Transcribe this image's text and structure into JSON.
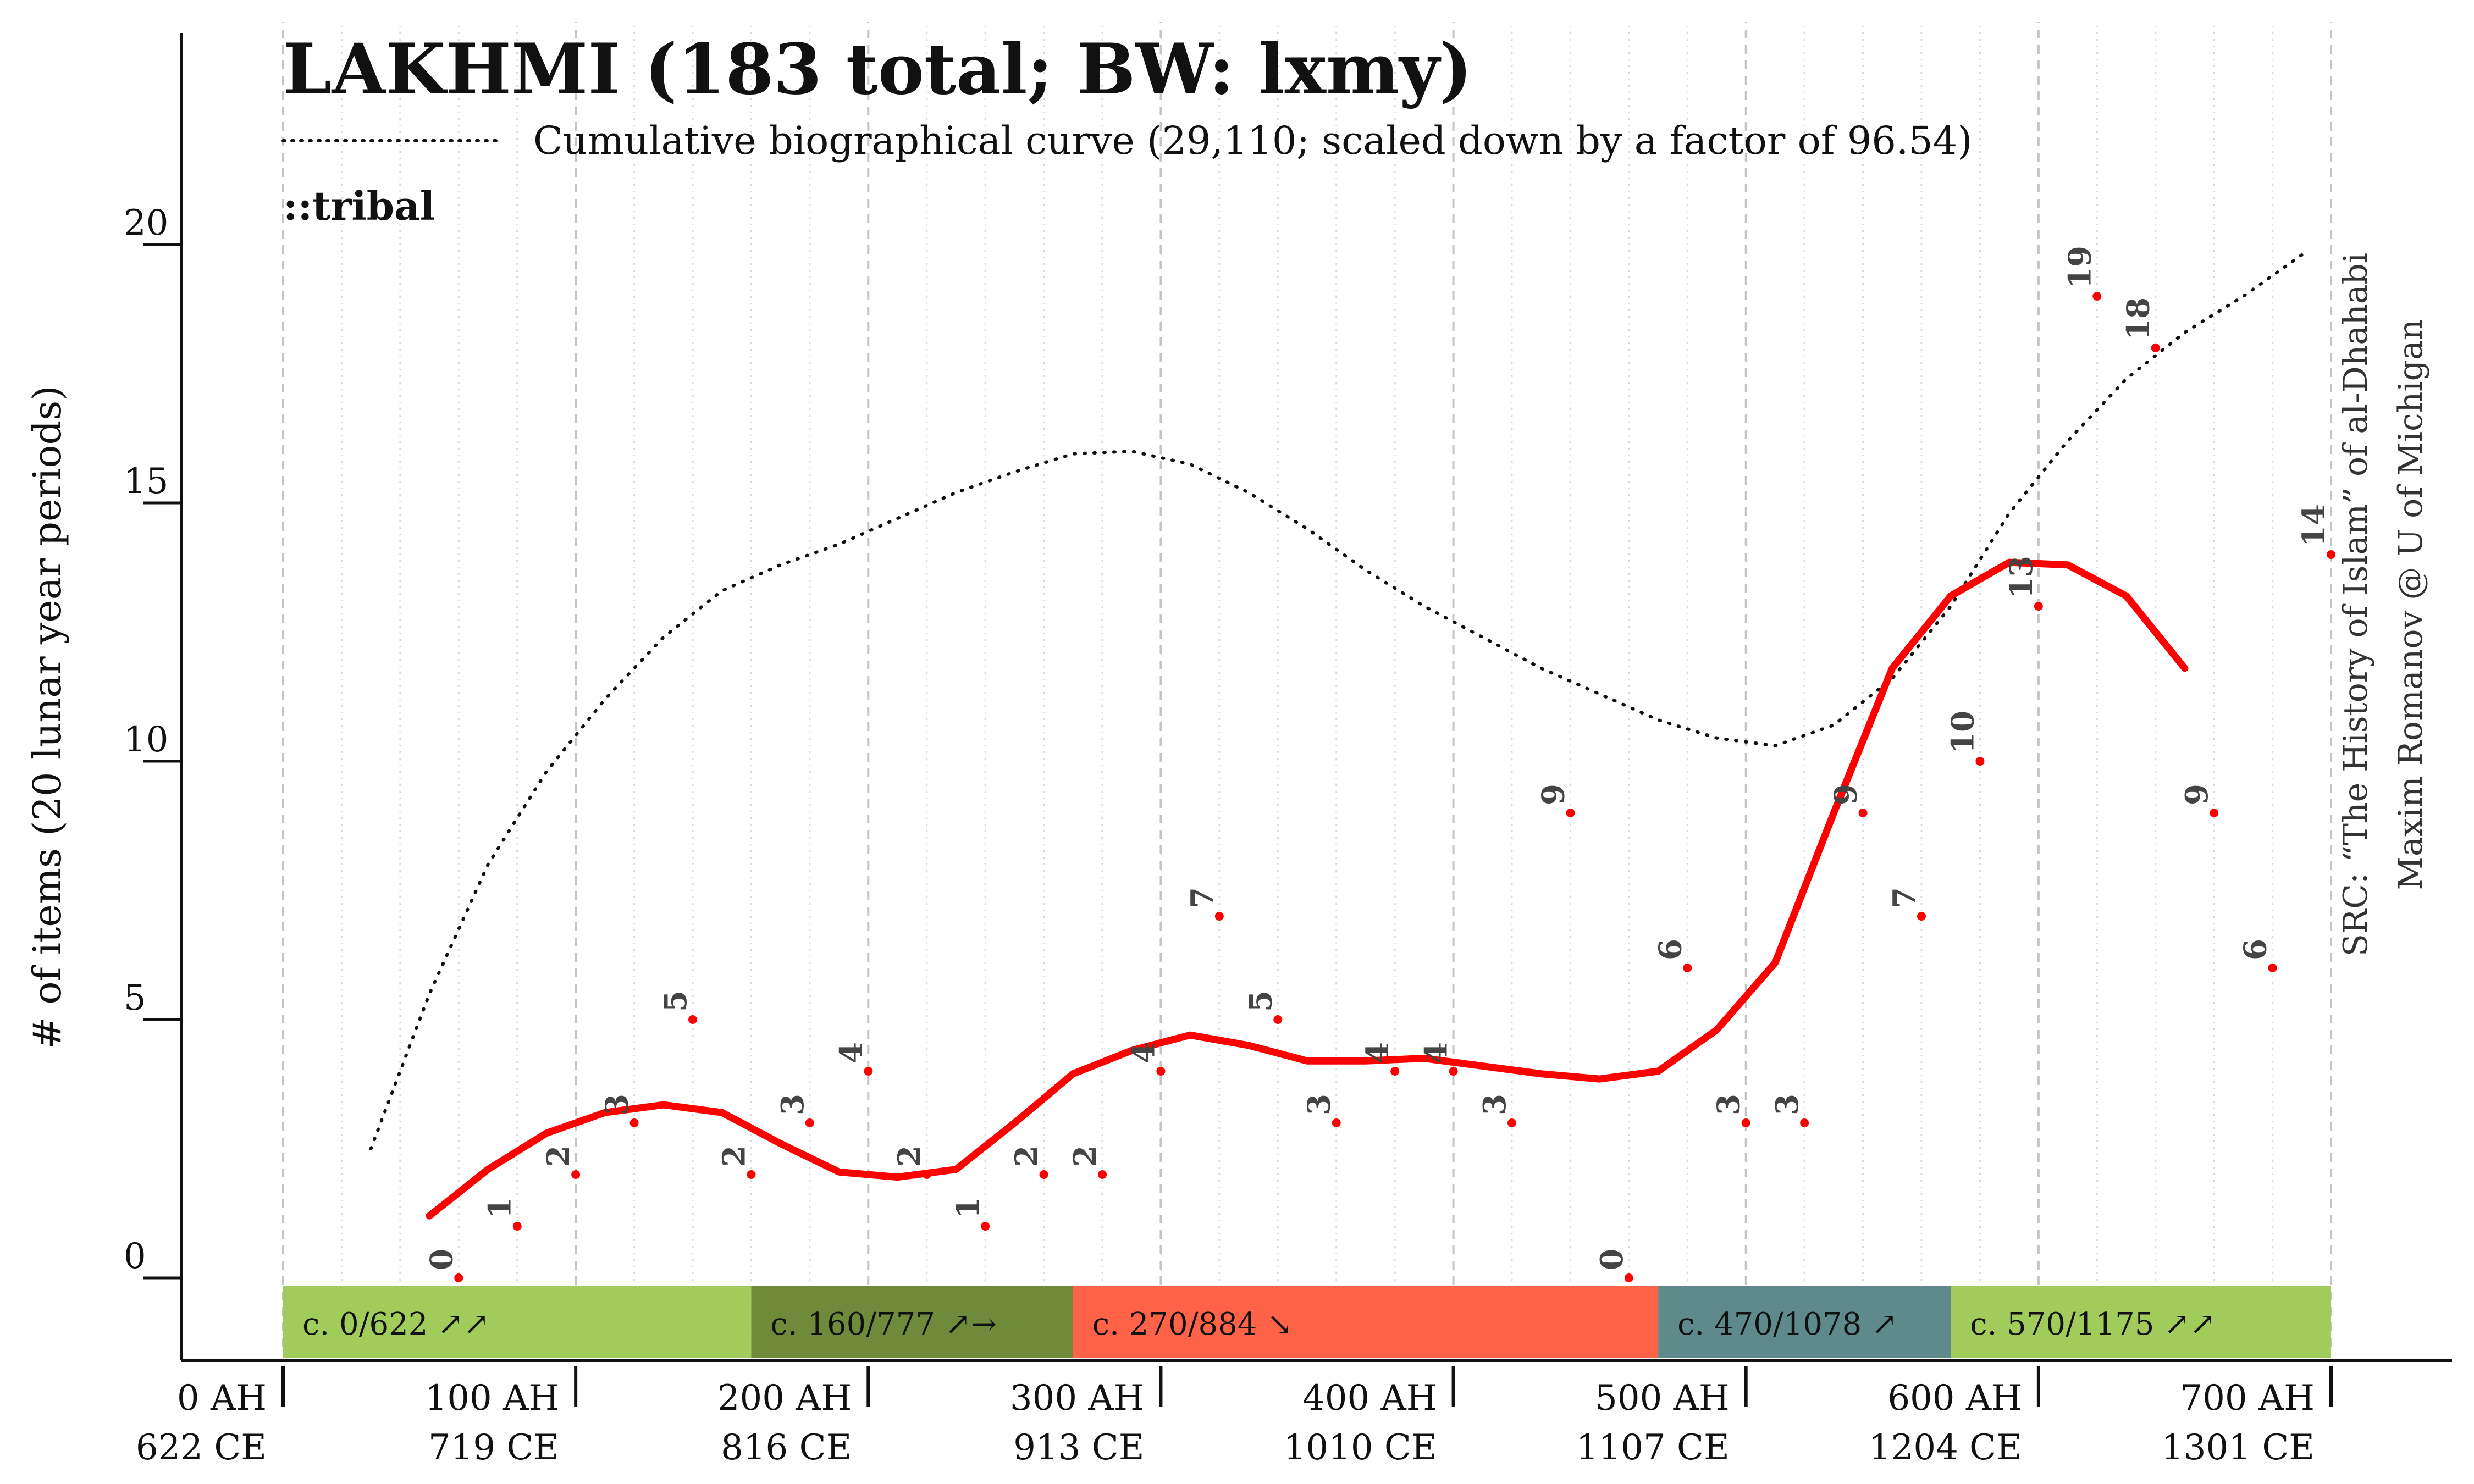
{
  "chart_data": {
    "type": "line",
    "title": "LAKHMI (183 total; BW: lxmy)",
    "topic_label": "::tribal",
    "ylabel": "# of items (20 lunar year periods)",
    "source_lines": [
      "SRC: “The History of Islam” of al-Dhahabi",
      "Maxim Romanov @ U of Michigan"
    ],
    "legend": "Cumulative biographical curve (29,110; scaled down by a factor of 96.54)",
    "xlim": [
      0,
      740
    ],
    "ylim": [
      -1.6,
      24
    ],
    "x_ticks": [
      {
        "x": 0,
        "ah": "0 AH",
        "ce": "622 CE"
      },
      {
        "x": 100,
        "ah": "100 AH",
        "ce": "719 CE"
      },
      {
        "x": 200,
        "ah": "200 AH",
        "ce": "816 CE"
      },
      {
        "x": 300,
        "ah": "300 AH",
        "ce": "913 CE"
      },
      {
        "x": 400,
        "ah": "400 AH",
        "ce": "1010 CE"
      },
      {
        "x": 500,
        "ah": "500 AH",
        "ce": "1107 CE"
      },
      {
        "x": 600,
        "ah": "600 AH",
        "ce": "1204 CE"
      },
      {
        "x": 700,
        "ah": "700 AH",
        "ce": "1301 CE"
      }
    ],
    "y_ticks": [
      0,
      5,
      10,
      15,
      20
    ],
    "points": [
      {
        "x": 60,
        "y": 0,
        "label": "0"
      },
      {
        "x": 80,
        "y": 1,
        "label": "1"
      },
      {
        "x": 100,
        "y": 2,
        "label": "2"
      },
      {
        "x": 120,
        "y": 3,
        "label": "3"
      },
      {
        "x": 140,
        "y": 5,
        "label": "5"
      },
      {
        "x": 160,
        "y": 2,
        "label": "2"
      },
      {
        "x": 180,
        "y": 3,
        "label": "3"
      },
      {
        "x": 200,
        "y": 4,
        "label": "4"
      },
      {
        "x": 220,
        "y": 2,
        "label": "2"
      },
      {
        "x": 240,
        "y": 1,
        "label": "1"
      },
      {
        "x": 260,
        "y": 2,
        "label": "2"
      },
      {
        "x": 280,
        "y": 2,
        "label": "2"
      },
      {
        "x": 300,
        "y": 4,
        "label": "4"
      },
      {
        "x": 320,
        "y": 7,
        "label": "7"
      },
      {
        "x": 340,
        "y": 5,
        "label": "5"
      },
      {
        "x": 360,
        "y": 3,
        "label": "3"
      },
      {
        "x": 380,
        "y": 4,
        "label": "4"
      },
      {
        "x": 400,
        "y": 4,
        "label": "4"
      },
      {
        "x": 420,
        "y": 3,
        "label": "3"
      },
      {
        "x": 440,
        "y": 9,
        "label": "9"
      },
      {
        "x": 460,
        "y": 0,
        "label": "0"
      },
      {
        "x": 480,
        "y": 6,
        "label": "6"
      },
      {
        "x": 500,
        "y": 3,
        "label": "3"
      },
      {
        "x": 520,
        "y": 3,
        "label": "3"
      },
      {
        "x": 540,
        "y": 9,
        "label": "9"
      },
      {
        "x": 560,
        "y": 7,
        "label": "7"
      },
      {
        "x": 580,
        "y": 10,
        "label": "10"
      },
      {
        "x": 600,
        "y": 13,
        "label": "13"
      },
      {
        "x": 620,
        "y": 19,
        "label": "19"
      },
      {
        "x": 640,
        "y": 18,
        "label": "18"
      },
      {
        "x": 660,
        "y": 9,
        "label": "9"
      },
      {
        "x": 680,
        "y": 6,
        "label": "6"
      },
      {
        "x": 700,
        "y": 14,
        "label": "14"
      }
    ],
    "smoothed_series": {
      "x": [
        50,
        70,
        90,
        110,
        130,
        150,
        170,
        190,
        210,
        230,
        250,
        270,
        290,
        310,
        330,
        350,
        370,
        390,
        410,
        430,
        450,
        470,
        490,
        510,
        530,
        550,
        570,
        590,
        610,
        630,
        650
      ],
      "y": [
        1.2,
        2.1,
        2.8,
        3.2,
        3.35,
        3.2,
        2.6,
        2.05,
        1.95,
        2.1,
        3.0,
        3.95,
        4.4,
        4.7,
        4.5,
        4.2,
        4.2,
        4.25,
        4.1,
        3.95,
        3.85,
        4.0,
        4.8,
        6.1,
        9.0,
        11.8,
        13.2,
        13.85,
        13.8,
        13.2,
        11.8
      ],
      "color": "#ff0000"
    },
    "cumulative_series": {
      "x": [
        30,
        50,
        70,
        90,
        110,
        130,
        150,
        170,
        190,
        210,
        230,
        250,
        270,
        290,
        310,
        330,
        350,
        370,
        390,
        410,
        430,
        450,
        470,
        490,
        510,
        530,
        550,
        570,
        590,
        610,
        630,
        650,
        670,
        690
      ],
      "y": [
        2.5,
        5.5,
        8.0,
        9.8,
        11.2,
        12.4,
        13.3,
        13.8,
        14.2,
        14.7,
        15.2,
        15.6,
        15.95,
        16.0,
        15.75,
        15.2,
        14.5,
        13.7,
        13.0,
        12.4,
        11.8,
        11.3,
        10.8,
        10.45,
        10.3,
        10.7,
        11.6,
        13.0,
        14.8,
        16.2,
        17.4,
        18.3,
        19.0,
        19.8
      ],
      "style": "dotted"
    },
    "periods": [
      {
        "start": 0,
        "end": 160,
        "label": "c. 0/622 ↗↗",
        "color": "#a1cb5b"
      },
      {
        "start": 160,
        "end": 270,
        "label": "c. 160/777 ↗→",
        "color": "#6e8a3a"
      },
      {
        "start": 270,
        "end": 470,
        "label": "c. 270/884 ↘",
        "color": "#ff6347"
      },
      {
        "start": 470,
        "end": 570,
        "label": "c. 470/1078 ↗",
        "color": "#5f8a8b"
      },
      {
        "start": 570,
        "end": 700,
        "label": "c. 570/1175 ↗↗",
        "color": "#a1cb5b"
      }
    ],
    "grid": "vertical dashed every 100, dotted every 20"
  }
}
